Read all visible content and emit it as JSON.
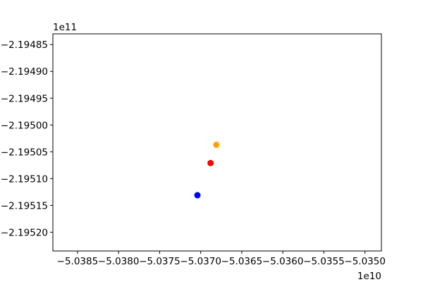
{
  "chart_data": {
    "type": "scatter",
    "title": "",
    "xlabel": "",
    "ylabel": "",
    "x_offset_label": "1e10",
    "y_offset_label": "1e11",
    "xlim": [
      -5.0388,
      -5.0348
    ],
    "ylim": [
      -2.195235,
      -2.19483
    ],
    "x_ticks": [
      -5.0385,
      -5.038,
      -5.0375,
      -5.037,
      -5.0365,
      -5.036,
      -5.0355,
      -5.035
    ],
    "x_tick_labels": [
      "−5.0385",
      "−5.0380",
      "−5.0375",
      "−5.0370",
      "−5.0365",
      "−5.0360",
      "−5.0355",
      "−5.0350"
    ],
    "y_ticks": [
      -2.19485,
      -2.1949,
      -2.19495,
      -2.195,
      -2.19505,
      -2.1951,
      -2.19515,
      -2.1952
    ],
    "y_tick_labels": [
      "−2.19485",
      "−2.19490",
      "−2.19495",
      "−2.19500",
      "−2.19505",
      "−2.19510",
      "−2.19515",
      "−2.19520"
    ],
    "grid": false,
    "points": [
      {
        "x": -5.03681,
        "y": -2.195037,
        "color": "#ffa500"
      },
      {
        "x": -5.03688,
        "y": -2.195071,
        "color": "#ff0000"
      },
      {
        "x": -5.03704,
        "y": -2.195131,
        "color": "#0000ff"
      }
    ]
  }
}
